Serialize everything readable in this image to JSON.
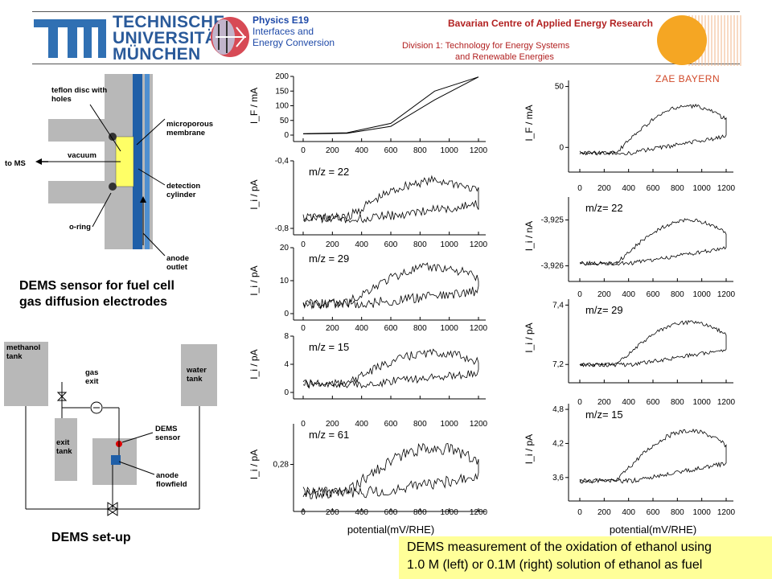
{
  "header": {
    "tum_line1": "TECHNISCHE",
    "tum_line2": "UNIVERSITÄT",
    "tum_line3": "MÜNCHEN",
    "physics_title": "Physics E19",
    "physics_line2": "Interfaces and",
    "physics_line3": "Energy Conversion",
    "bavarian": "Bavarian Centre of Applied Energy Research",
    "division_line1": "Division 1: Technology for Energy Systems",
    "division_line2": "and Renewable Energies",
    "zae": "ZAE BAYERN"
  },
  "sensor_diagram": {
    "teflon": "teflon disc with holes",
    "membrane": "microporous membrane",
    "to_ms": "to MS",
    "vacuum": "vacuum",
    "detection": "detection cylinder",
    "oring": "o-ring",
    "anode": "anode outlet",
    "caption_line1": "DEMS sensor for fuel cell",
    "caption_line2": "gas diffusion electrodes"
  },
  "setup_diagram": {
    "methanol": "methanol tank",
    "water": "water tank",
    "gas_exit": "gas exit",
    "exit_tank": "exit tank",
    "dems_sensor": "DEMS sensor",
    "anode_flowfield": "anode flowfield",
    "caption": "DEMS set-up"
  },
  "caption_box": {
    "line1": "DEMS measurement of the oxidation of ethanol using",
    "line2": "1.0 M (left) or 0.1M (right) solution of ethanol as fuel"
  },
  "colors": {
    "blue_electrode": "#1f5fa8",
    "gray_body": "#b8b8b8",
    "yellow_disc": "#ffff66",
    "red_dot": "#dd0000",
    "box_yellow": "#ffff99"
  },
  "chart_data": [
    {
      "type": "line",
      "column": "left",
      "ylabel": "I_F / mA",
      "xlabel": "",
      "xlim": [
        0,
        1200
      ],
      "yticks": [
        0,
        50,
        100,
        150,
        200
      ],
      "ylim": [
        0,
        200
      ],
      "annotation": "",
      "series": [
        {
          "x": [
            0,
            300,
            600,
            900,
            1200
          ],
          "values": [
            5,
            8,
            40,
            150,
            198
          ]
        },
        {
          "x": [
            1200,
            900,
            600,
            300,
            0
          ],
          "values": [
            198,
            120,
            30,
            6,
            4
          ]
        }
      ]
    },
    {
      "type": "line",
      "column": "left",
      "ylabel": "I_i / pA",
      "xlabel": "",
      "xlim": [
        0,
        1200
      ],
      "yticks": [
        -0.4,
        -0.8
      ],
      "ylim": [
        -0.8,
        -0.4
      ],
      "annotation": "m/z = 22",
      "series": []
    },
    {
      "type": "line",
      "column": "left",
      "ylabel": "I_i / pA",
      "xlabel": "",
      "xlim": [
        0,
        1200
      ],
      "yticks": [
        0,
        10,
        20
      ],
      "ylim": [
        0,
        20
      ],
      "annotation": "m/z = 29",
      "series": []
    },
    {
      "type": "line",
      "column": "left",
      "ylabel": "I_i / pA",
      "xlabel": "",
      "xlim": [
        0,
        1200
      ],
      "yticks": [
        0,
        4,
        8
      ],
      "ylim": [
        0,
        8
      ],
      "annotation": "m/z = 15",
      "series": []
    },
    {
      "type": "line",
      "column": "left",
      "ylabel": "I_i / pA",
      "xlabel": "potential(mV/RHE)",
      "xlim": [
        0,
        1200
      ],
      "yticks": [
        0.28
      ],
      "ylim": [
        0.27,
        0.29
      ],
      "annotation": "m/z = 61",
      "series": []
    },
    {
      "type": "line",
      "column": "right",
      "ylabel": "I_F / mA",
      "xlabel": "",
      "xlim": [
        0,
        1200
      ],
      "yticks": [
        0,
        50
      ],
      "ylim": [
        -15,
        55
      ],
      "annotation": "",
      "series": []
    },
    {
      "type": "line",
      "column": "right",
      "ylabel": "I_i / nA",
      "xlabel": "",
      "xlim": [
        0,
        1200
      ],
      "yticks": [
        -3.925,
        -3.926
      ],
      "ylim": [
        -3.9262,
        -3.9245
      ],
      "annotation": "m/z= 22",
      "series": []
    },
    {
      "type": "line",
      "column": "right",
      "ylabel": "I_i / pA",
      "xlabel": "",
      "xlim": [
        0,
        1200
      ],
      "yticks": [
        7.4,
        7.2
      ],
      "ylim": [
        7.16,
        7.42
      ],
      "annotation": "m/z= 29",
      "series": []
    },
    {
      "type": "line",
      "column": "right",
      "ylabel": "I_i / pA",
      "xlabel": "potential(mV/RHE)",
      "xlim": [
        0,
        1200
      ],
      "yticks": [
        4.8,
        4.2,
        3.6
      ],
      "ylim": [
        3.3,
        4.9
      ],
      "annotation": "m/z= 15",
      "series": []
    }
  ]
}
